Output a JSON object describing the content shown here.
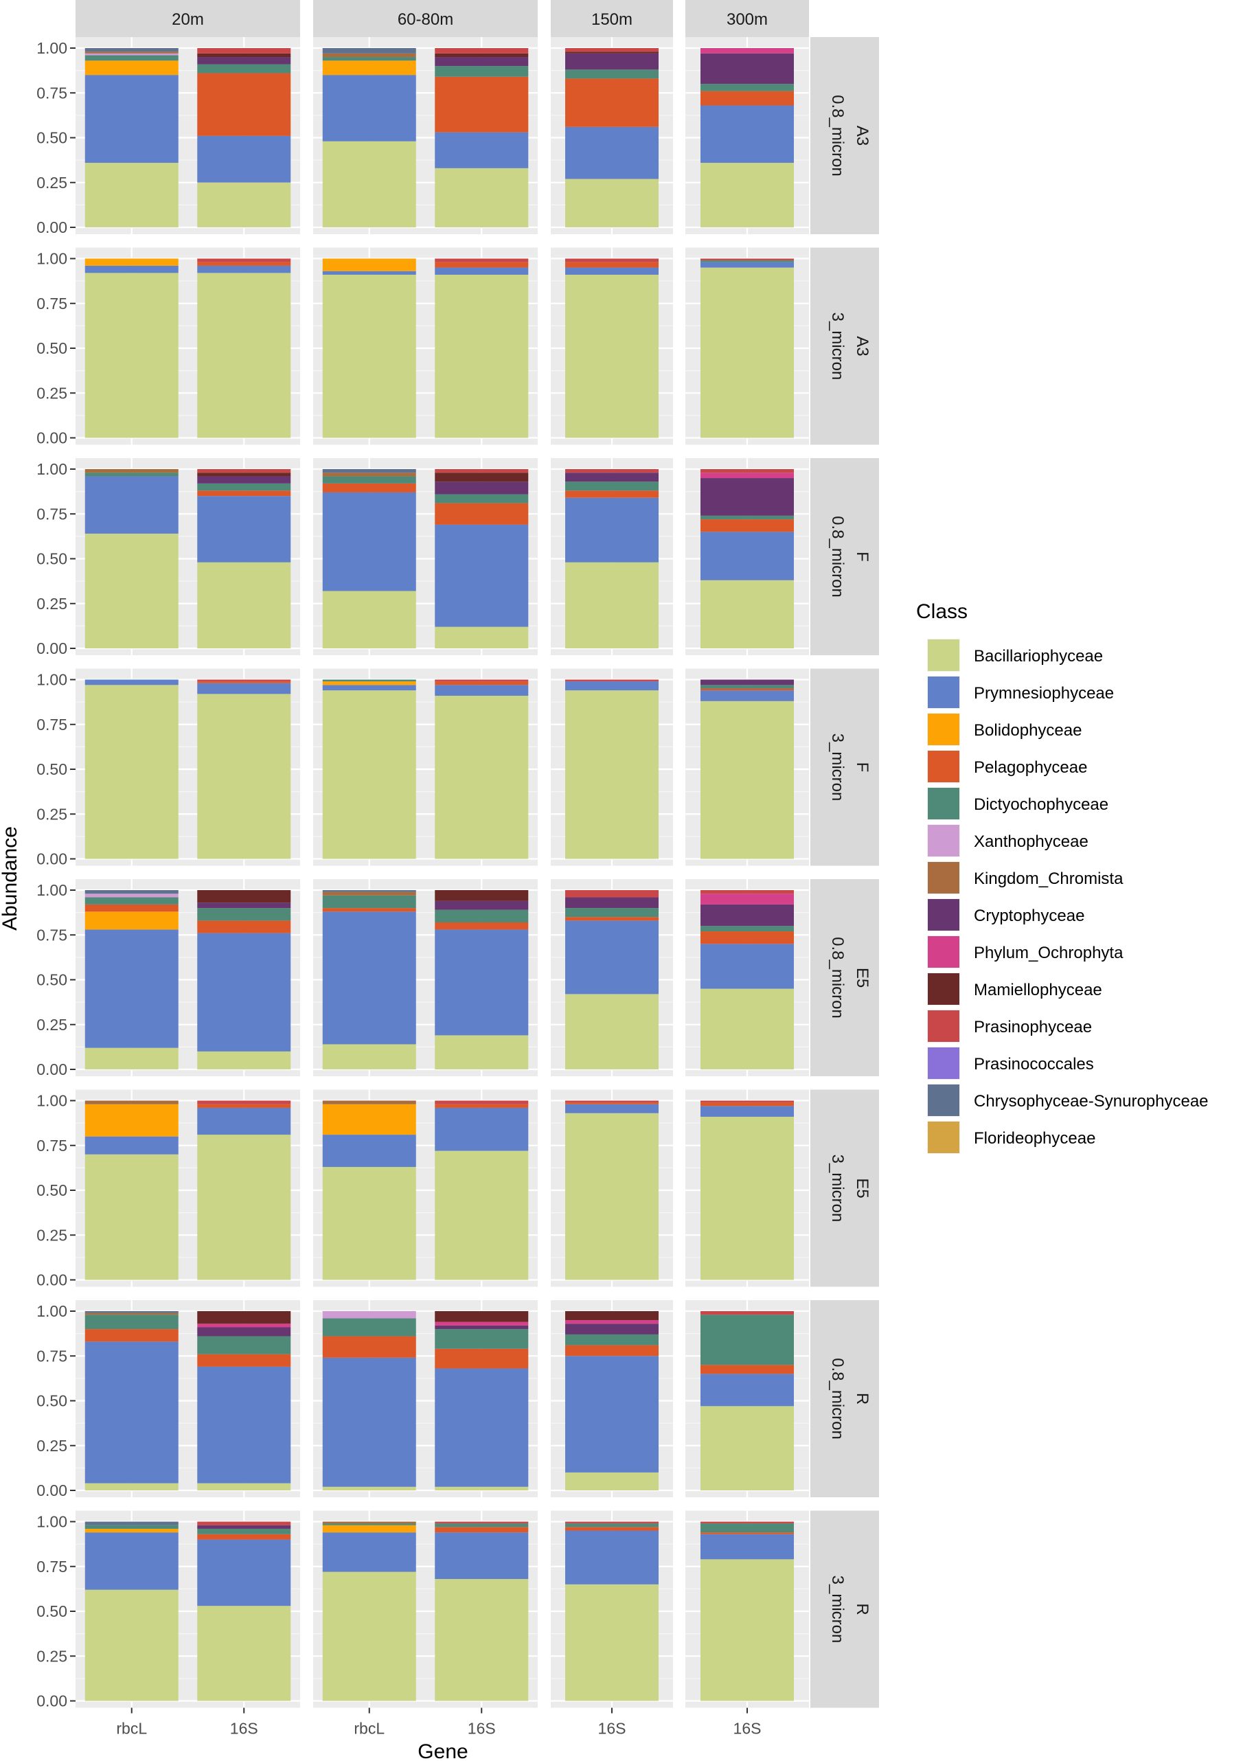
{
  "chart_data": {
    "type": "bar",
    "stacked": true,
    "xlabel": "Gene",
    "ylabel": "Abundance",
    "ylim": [
      0,
      1
    ],
    "yticks": [
      "0.00",
      "0.25",
      "0.50",
      "0.75",
      "1.00"
    ],
    "grid": true,
    "legend_position": "right",
    "legend": {
      "title": "Class",
      "entries": [
        {
          "name": "Bacillariophyceae",
          "color": "#CAD587"
        },
        {
          "name": "Prymnesiophyceae",
          "color": "#6080C9"
        },
        {
          "name": "Bolidophyceae",
          "color": "#FDA404"
        },
        {
          "name": "Pelagophyceae",
          "color": "#DC5829"
        },
        {
          "name": "Dictyochophyceae",
          "color": "#4F8977"
        },
        {
          "name": "Xanthophyceae",
          "color": "#CE9BD3"
        },
        {
          "name": "Kingdom_Chromista",
          "color": "#A96C3F"
        },
        {
          "name": "Cryptophyceae",
          "color": "#673670"
        },
        {
          "name": "Phylum_Ochrophyta",
          "color": "#D4408A"
        },
        {
          "name": "Mamiellophyceae",
          "color": "#6A2826"
        },
        {
          "name": "Prasinophyceae",
          "color": "#C94749"
        },
        {
          "name": "Prasinococcales",
          "color": "#8A70D9"
        },
        {
          "name": "Chrysophyceae-Synurophyceae",
          "color": "#5E718F"
        },
        {
          "name": "Florideophyceae",
          "color": "#D3A441"
        }
      ]
    },
    "columns": [
      {
        "label": "20m",
        "genes": [
          "rbcL",
          "16S"
        ]
      },
      {
        "label": "60-80m",
        "genes": [
          "rbcL",
          "16S"
        ]
      },
      {
        "label": "150m",
        "genes": [
          "16S"
        ]
      },
      {
        "label": "300m",
        "genes": [
          "16S"
        ]
      }
    ],
    "rows": [
      {
        "site": "A3",
        "fraction": "0.8_micron"
      },
      {
        "site": "A3",
        "fraction": "3_micron"
      },
      {
        "site": "F",
        "fraction": "0.8_micron"
      },
      {
        "site": "F",
        "fraction": "3_micron"
      },
      {
        "site": "E5",
        "fraction": "0.8_micron"
      },
      {
        "site": "E5",
        "fraction": "3_micron"
      },
      {
        "site": "R",
        "fraction": "0.8_micron"
      },
      {
        "site": "R",
        "fraction": "3_micron"
      }
    ],
    "bars": [
      [
        [
          {
            "Dictyochophyceae": 0.03,
            "Xanthophyceae": 0.01,
            "Kingdom_Chromista": 0.01,
            "Chrysophyceae-Synurophyceae": 0.02,
            "Bolidophyceae": 0.08,
            "Prymnesiophyceae": 0.49,
            "Bacillariophyceae": 0.36
          },
          {
            "Prasinophyceae": 0.03,
            "Mamiellophyceae": 0.02,
            "Cryptophyceae": 0.04,
            "Dictyochophyceae": 0.05,
            "Pelagophyceae": 0.35,
            "Prymnesiophyceae": 0.26,
            "Bacillariophyceae": 0.25
          }
        ],
        [
          {
            "Kingdom_Chromista": 0.02,
            "Dictyochophyceae": 0.02,
            "Chrysophyceae-Synurophyceae": 0.03,
            "Bolidophyceae": 0.08,
            "Prymnesiophyceae": 0.37,
            "Bacillariophyceae": 0.48
          },
          {
            "Prasinophyceae": 0.03,
            "Mamiellophyceae": 0.02,
            "Cryptophyceae": 0.05,
            "Dictyochophyceae": 0.06,
            "Pelagophyceae": 0.31,
            "Prymnesiophyceae": 0.2,
            "Bacillariophyceae": 0.33
          }
        ],
        [
          {
            "Prasinophyceae": 0.02,
            "Mamiellophyceae": 0.01,
            "Cryptophyceae": 0.09,
            "Dictyochophyceae": 0.05,
            "Pelagophyceae": 0.27,
            "Prymnesiophyceae": 0.29,
            "Bacillariophyceae": 0.27
          }
        ],
        [
          {
            "Phylum_Ochrophyta": 0.03,
            "Cryptophyceae": 0.17,
            "Dictyochophyceae": 0.04,
            "Pelagophyceae": 0.08,
            "Prymnesiophyceae": 0.32,
            "Bacillariophyceae": 0.36
          }
        ]
      ],
      [
        [
          {
            "Bolidophyceae": 0.04,
            "Prymnesiophyceae": 0.04,
            "Bacillariophyceae": 0.92
          },
          {
            "Prasinophyceae": 0.02,
            "Pelagophyceae": 0.02,
            "Prymnesiophyceae": 0.04,
            "Bacillariophyceae": 0.92
          }
        ],
        [
          {
            "Bolidophyceae": 0.07,
            "Prymnesiophyceae": 0.02,
            "Bacillariophyceae": 0.91
          },
          {
            "Prasinophyceae": 0.02,
            "Pelagophyceae": 0.03,
            "Prymnesiophyceae": 0.04,
            "Bacillariophyceae": 0.91
          }
        ],
        [
          {
            "Prasinophyceae": 0.02,
            "Pelagophyceae": 0.03,
            "Prymnesiophyceae": 0.04,
            "Bacillariophyceae": 0.91
          }
        ],
        [
          {
            "Prasinophyceae": 0.01,
            "Dictyochophyceae": 0.01,
            "Prymnesiophyceae": 0.03,
            "Bacillariophyceae": 0.95
          }
        ]
      ],
      [
        [
          {
            "Dictyochophyceae": 0.02,
            "Kingdom_Chromista": 0.02,
            "Prymnesiophyceae": 0.32,
            "Bacillariophyceae": 0.64
          },
          {
            "Prasinophyceae": 0.02,
            "Mamiellophyceae": 0.02,
            "Cryptophyceae": 0.04,
            "Dictyochophyceae": 0.04,
            "Pelagophyceae": 0.03,
            "Prymnesiophyceae": 0.37,
            "Bacillariophyceae": 0.48
          }
        ],
        [
          {
            "Kingdom_Chromista": 0.02,
            "Chrysophyceae-Synurophyceae": 0.02,
            "Dictyochophyceae": 0.04,
            "Pelagophyceae": 0.05,
            "Prymnesiophyceae": 0.55,
            "Bacillariophyceae": 0.32
          },
          {
            "Prasinophyceae": 0.02,
            "Mamiellophyceae": 0.05,
            "Cryptophyceae": 0.07,
            "Dictyochophyceae": 0.05,
            "Pelagophyceae": 0.12,
            "Prymnesiophyceae": 0.57,
            "Bacillariophyceae": 0.12
          }
        ],
        [
          {
            "Prasinophyceae": 0.02,
            "Cryptophyceae": 0.05,
            "Dictyochophyceae": 0.05,
            "Pelagophyceae": 0.04,
            "Prymnesiophyceae": 0.36,
            "Bacillariophyceae": 0.48
          }
        ],
        [
          {
            "Prasinophyceae": 0.02,
            "Phylum_Ochrophyta": 0.03,
            "Cryptophyceae": 0.21,
            "Dictyochophyceae": 0.02,
            "Pelagophyceae": 0.07,
            "Prymnesiophyceae": 0.27,
            "Bacillariophyceae": 0.38
          }
        ]
      ],
      [
        [
          {
            "Prymnesiophyceae": 0.03,
            "Bacillariophyceae": 0.97
          },
          {
            "Prasinophyceae": 0.01,
            "Pelagophyceae": 0.01,
            "Prymnesiophyceae": 0.06,
            "Bacillariophyceae": 0.92
          }
        ],
        [
          {
            "Bolidophyceae": 0.02,
            "Dictyochophyceae": 0.01,
            "Prymnesiophyceae": 0.03,
            "Bacillariophyceae": 0.94
          },
          {
            "Prasinophyceae": 0.01,
            "Pelagophyceae": 0.02,
            "Prymnesiophyceae": 0.06,
            "Bacillariophyceae": 0.91
          }
        ],
        [
          {
            "Prasinophyceae": 0.01,
            "Prymnesiophyceae": 0.05,
            "Bacillariophyceae": 0.94
          }
        ],
        [
          {
            "Cryptophyceae": 0.03,
            "Dictyochophyceae": 0.02,
            "Pelagophyceae": 0.01,
            "Prymnesiophyceae": 0.06,
            "Bacillariophyceae": 0.88
          }
        ]
      ],
      [
        [
          {
            "Xanthophyceae": 0.02,
            "Chrysophyceae-Synurophyceae": 0.02,
            "Dictyochophyceae": 0.04,
            "Pelagophyceae": 0.04,
            "Bolidophyceae": 0.1,
            "Prymnesiophyceae": 0.66,
            "Bacillariophyceae": 0.12
          },
          {
            "Mamiellophyceae": 0.07,
            "Cryptophyceae": 0.03,
            "Dictyochophyceae": 0.07,
            "Pelagophyceae": 0.07,
            "Prymnesiophyceae": 0.66,
            "Bacillariophyceae": 0.1
          }
        ],
        [
          {
            "Kingdom_Chromista": 0.02,
            "Chrysophyceae-Synurophyceae": 0.01,
            "Dictyochophyceae": 0.07,
            "Pelagophyceae": 0.02,
            "Prymnesiophyceae": 0.74,
            "Bacillariophyceae": 0.14
          },
          {
            "Mamiellophyceae": 0.06,
            "Cryptophyceae": 0.05,
            "Dictyochophyceae": 0.07,
            "Pelagophyceae": 0.04,
            "Prymnesiophyceae": 0.59,
            "Bacillariophyceae": 0.19
          }
        ],
        [
          {
            "Prasinophyceae": 0.04,
            "Cryptophyceae": 0.06,
            "Dictyochophyceae": 0.05,
            "Pelagophyceae": 0.02,
            "Prymnesiophyceae": 0.41,
            "Bacillariophyceae": 0.42
          }
        ],
        [
          {
            "Prasinophyceae": 0.02,
            "Phylum_Ochrophyta": 0.06,
            "Cryptophyceae": 0.12,
            "Dictyochophyceae": 0.03,
            "Pelagophyceae": 0.07,
            "Prymnesiophyceae": 0.25,
            "Bacillariophyceae": 0.45
          }
        ]
      ],
      [
        [
          {
            "Kingdom_Chromista": 0.02,
            "Bolidophyceae": 0.18,
            "Prymnesiophyceae": 0.1,
            "Bacillariophyceae": 0.7
          },
          {
            "Prasinophyceae": 0.02,
            "Pelagophyceae": 0.02,
            "Prymnesiophyceae": 0.15,
            "Bacillariophyceae": 0.81
          }
        ],
        [
          {
            "Kingdom_Chromista": 0.02,
            "Bolidophyceae": 0.17,
            "Prymnesiophyceae": 0.18,
            "Bacillariophyceae": 0.63
          },
          {
            "Prasinophyceae": 0.02,
            "Pelagophyceae": 0.02,
            "Prymnesiophyceae": 0.24,
            "Bacillariophyceae": 0.72
          }
        ],
        [
          {
            "Prasinophyceae": 0.01,
            "Pelagophyceae": 0.01,
            "Prymnesiophyceae": 0.05,
            "Bacillariophyceae": 0.93
          }
        ],
        [
          {
            "Prasinophyceae": 0.01,
            "Pelagophyceae": 0.02,
            "Prymnesiophyceae": 0.06,
            "Bacillariophyceae": 0.91
          }
        ]
      ],
      [
        [
          {
            "Kingdom_Chromista": 0.01,
            "Chrysophyceae-Synurophyceae": 0.01,
            "Dictyochophyceae": 0.08,
            "Pelagophyceae": 0.07,
            "Prymnesiophyceae": 0.79,
            "Bacillariophyceae": 0.04
          },
          {
            "Mamiellophyceae": 0.07,
            "Phylum_Ochrophyta": 0.02,
            "Cryptophyceae": 0.05,
            "Dictyochophyceae": 0.1,
            "Pelagophyceae": 0.07,
            "Prymnesiophyceae": 0.65,
            "Bacillariophyceae": 0.04
          }
        ],
        [
          {
            "Xanthophyceae": 0.04,
            "Dictyochophyceae": 0.1,
            "Pelagophyceae": 0.12,
            "Prymnesiophyceae": 0.72,
            "Bacillariophyceae": 0.02
          },
          {
            "Mamiellophyceae": 0.06,
            "Phylum_Ochrophyta": 0.02,
            "Cryptophyceae": 0.02,
            "Dictyochophyceae": 0.11,
            "Pelagophyceae": 0.11,
            "Prymnesiophyceae": 0.66,
            "Bacillariophyceae": 0.02
          }
        ],
        [
          {
            "Mamiellophyceae": 0.05,
            "Phylum_Ochrophyta": 0.02,
            "Cryptophyceae": 0.06,
            "Dictyochophyceae": 0.06,
            "Pelagophyceae": 0.06,
            "Prymnesiophyceae": 0.65,
            "Bacillariophyceae": 0.1
          }
        ],
        [
          {
            "Prasinophyceae": 0.02,
            "Dictyochophyceae": 0.28,
            "Pelagophyceae": 0.05,
            "Prymnesiophyceae": 0.18,
            "Bacillariophyceae": 0.47
          }
        ]
      ],
      [
        [
          {
            "Chrysophyceae-Synurophyceae": 0.02,
            "Dictyochophyceae": 0.02,
            "Bolidophyceae": 0.02,
            "Prymnesiophyceae": 0.32,
            "Bacillariophyceae": 0.62
          },
          {
            "Prasinophyceae": 0.02,
            "Cryptophyceae": 0.02,
            "Dictyochophyceae": 0.03,
            "Pelagophyceae": 0.03,
            "Prymnesiophyceae": 0.37,
            "Bacillariophyceae": 0.53
          }
        ],
        [
          {
            "Kingdom_Chromista": 0.01,
            "Dictyochophyceae": 0.01,
            "Bolidophyceae": 0.04,
            "Prymnesiophyceae": 0.22,
            "Bacillariophyceae": 0.72
          },
          {
            "Prasinophyceae": 0.01,
            "Dictyochophyceae": 0.02,
            "Pelagophyceae": 0.03,
            "Prymnesiophyceae": 0.26,
            "Bacillariophyceae": 0.68
          }
        ],
        [
          {
            "Prasinophyceae": 0.01,
            "Dictyochophyceae": 0.02,
            "Pelagophyceae": 0.02,
            "Prymnesiophyceae": 0.3,
            "Bacillariophyceae": 0.65
          }
        ],
        [
          {
            "Prasinophyceae": 0.01,
            "Dictyochophyceae": 0.05,
            "Pelagophyceae": 0.01,
            "Prymnesiophyceae": 0.14,
            "Bacillariophyceae": 0.79
          }
        ]
      ]
    ]
  }
}
